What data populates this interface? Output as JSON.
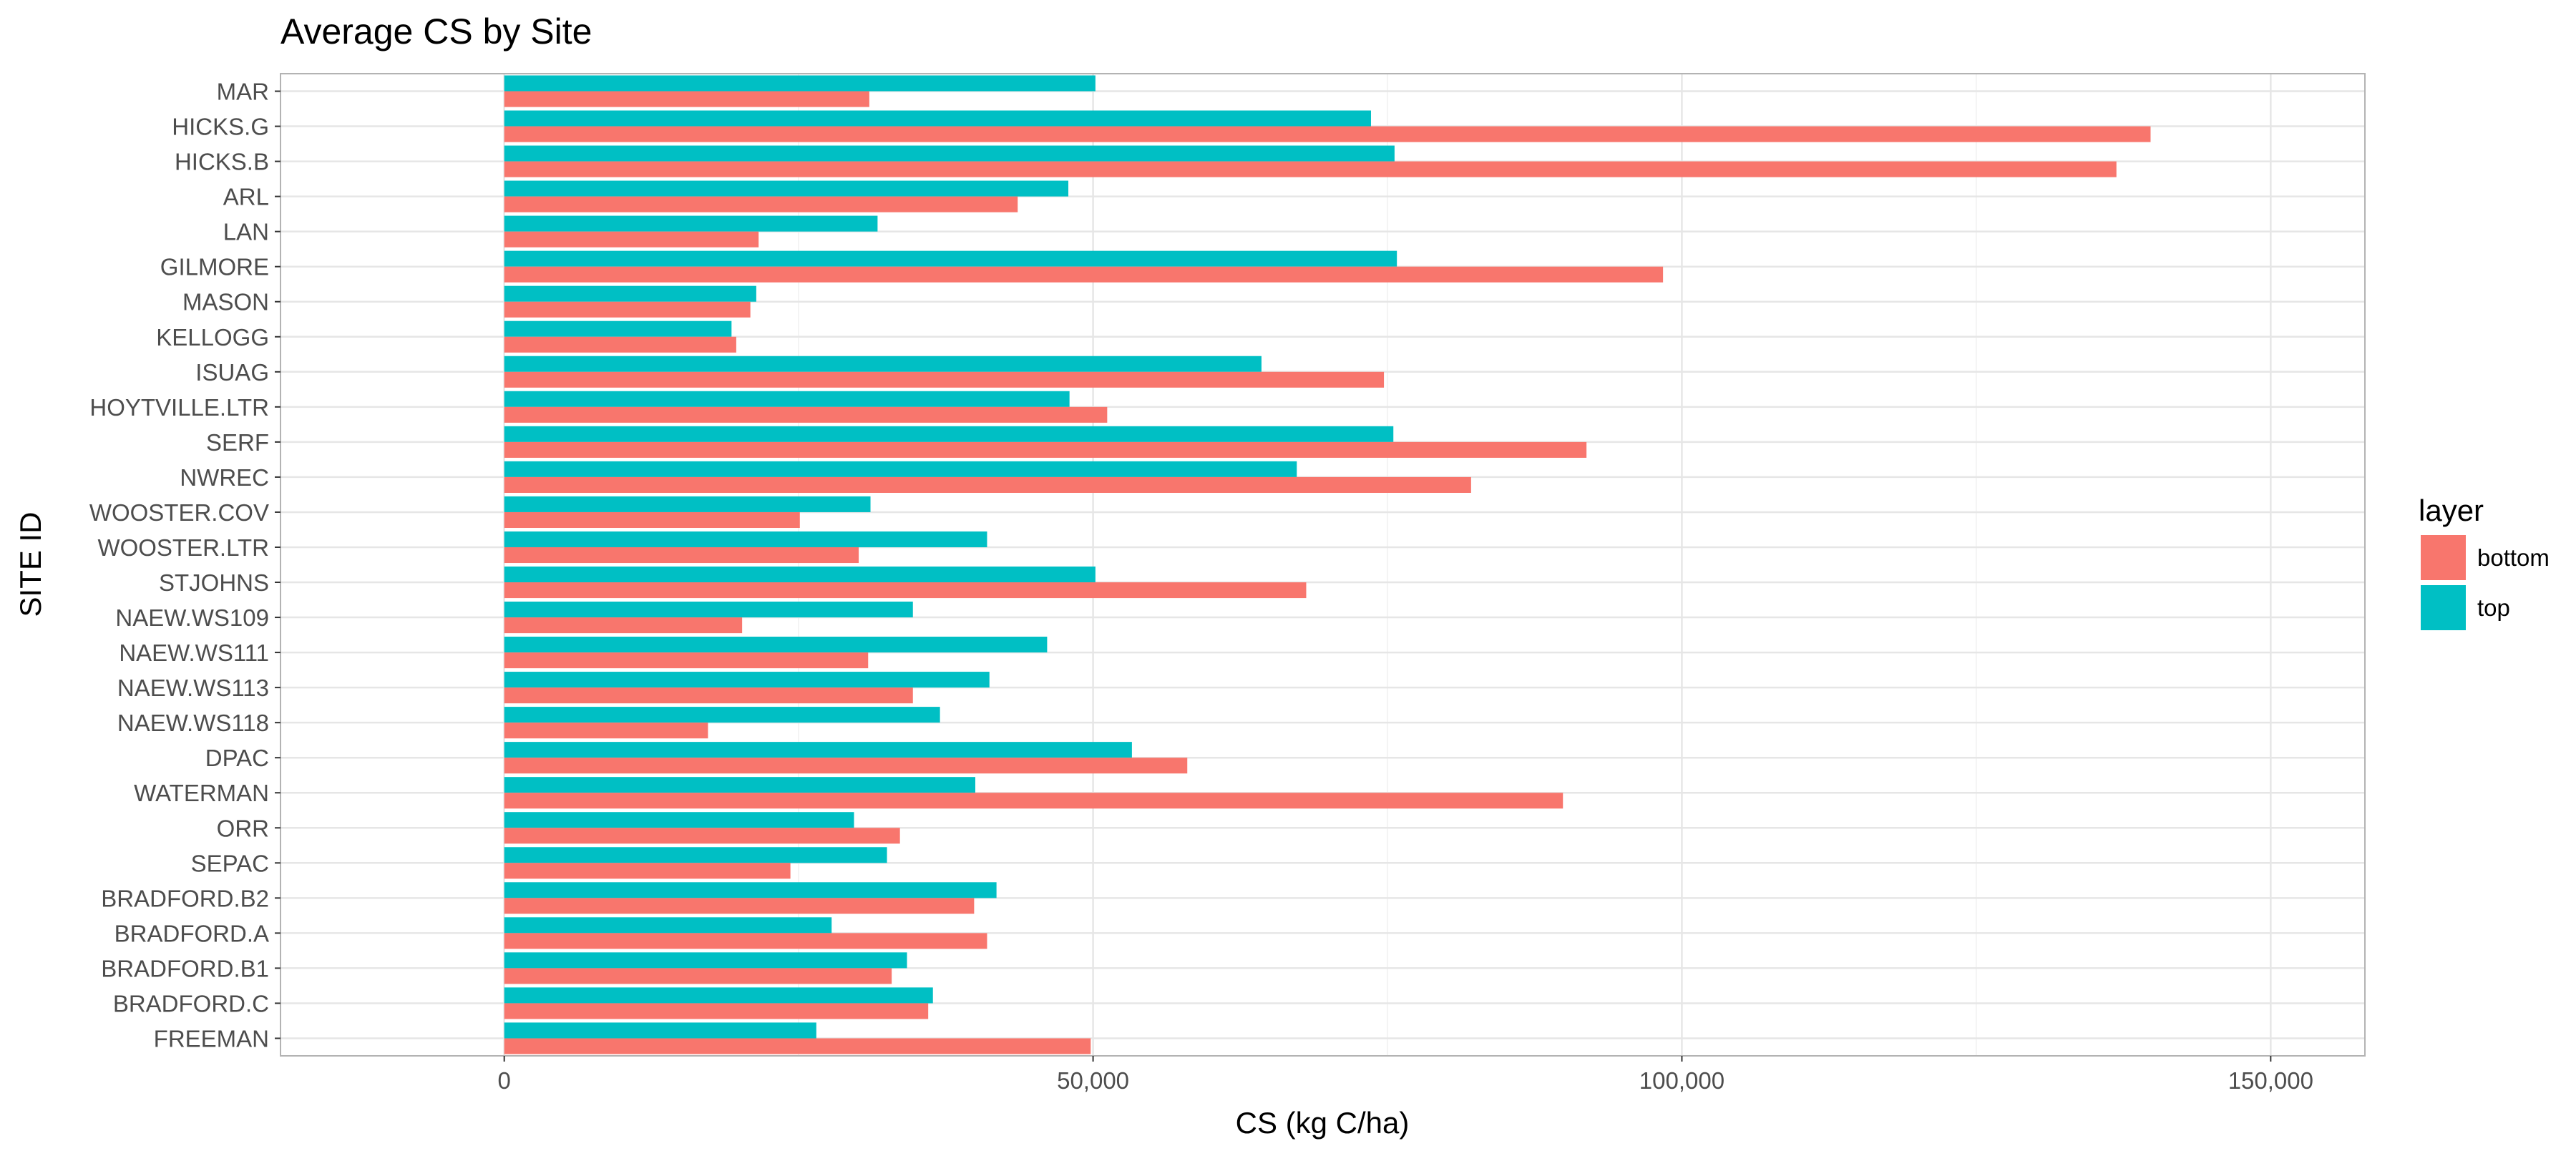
{
  "chart_data": {
    "type": "bar",
    "orientation": "horizontal",
    "title": "Average CS by Site",
    "xlabel": "CS (kg C/ha)",
    "ylabel": "SITE ID",
    "xlim": [
      -19000,
      158000
    ],
    "x_ticks": [
      0,
      50000,
      100000,
      150000
    ],
    "x_tick_labels": [
      "0",
      "50,000",
      "100,000",
      "150,000"
    ],
    "grid": true,
    "legend": {
      "title": "layer",
      "position": "right"
    },
    "categories": [
      "MAR",
      "HICKS.G",
      "HICKS.B",
      "ARL",
      "LAN",
      "GILMORE",
      "MASON",
      "KELLOGG",
      "ISUAG",
      "HOYTVILLE.LTR",
      "SERF",
      "NWREC",
      "WOOSTER.COV",
      "WOOSTER.LTR",
      "STJOHNS",
      "NAEW.WS109",
      "NAEW.WS111",
      "NAEW.WS113",
      "NAEW.WS118",
      "DPAC",
      "WATERMAN",
      "ORR",
      "SEPAC",
      "BRADFORD.B2",
      "BRADFORD.A",
      "BRADFORD.B1",
      "BRADFORD.C",
      "FREEMAN"
    ],
    "series": [
      {
        "name": "bottom",
        "color": "#F8766D",
        "values": [
          31000,
          139800,
          136900,
          43600,
          21600,
          98400,
          20900,
          19700,
          74700,
          51200,
          91900,
          82100,
          25100,
          30100,
          68100,
          20200,
          30900,
          34700,
          17300,
          58000,
          89900,
          33600,
          24300,
          39900,
          41000,
          32900,
          36000,
          49800
        ]
      },
      {
        "name": "top",
        "color": "#00BFC4",
        "values": [
          50200,
          73600,
          75600,
          47900,
          31700,
          75800,
          21400,
          19300,
          64300,
          48000,
          75500,
          67300,
          31100,
          41000,
          50200,
          34700,
          46100,
          41200,
          37000,
          53300,
          40000,
          29700,
          32500,
          41800,
          27800,
          34200,
          36400,
          26500
        ]
      }
    ]
  }
}
